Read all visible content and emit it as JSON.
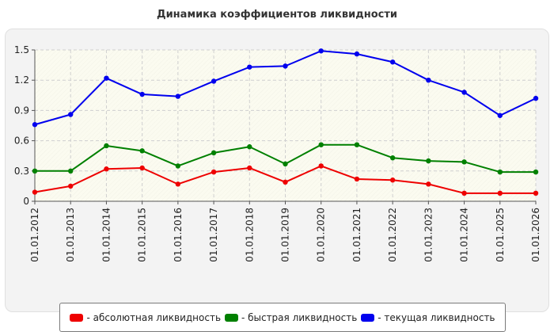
{
  "chart_data": {
    "type": "line",
    "title": "Динамика коэффициентов ликвидности",
    "xlabel": "",
    "ylabel": "",
    "ylim": [
      0,
      1.5
    ],
    "yticks": [
      "0",
      "0.3",
      "0.6",
      "0.9",
      "1.2",
      "1.5"
    ],
    "grid": true,
    "legend_position": "bottom",
    "categories": [
      "01.01.2012",
      "01.01.2013",
      "01.01.2014",
      "01.01.2015",
      "01.01.2016",
      "01.01.2017",
      "01.01.2018",
      "01.01.2019",
      "01.01.2020",
      "01.01.2021",
      "01.01.2022",
      "01.01.2023",
      "01.01.2024",
      "01.01.2025",
      "01.01.2026"
    ],
    "series": [
      {
        "name": "- абсолютная ликвидность",
        "color": "#ee0000",
        "values": [
          0.09,
          0.15,
          0.32,
          0.33,
          0.17,
          0.29,
          0.33,
          0.19,
          0.35,
          0.22,
          0.21,
          0.17,
          0.08,
          0.08,
          0.08
        ]
      },
      {
        "name": "- быстрая ликвидность",
        "color": "#008000",
        "values": [
          0.3,
          0.3,
          0.55,
          0.5,
          0.35,
          0.48,
          0.54,
          0.37,
          0.56,
          0.56,
          0.43,
          0.4,
          0.39,
          0.29,
          0.29
        ]
      },
      {
        "name": "- текущая ликвидность",
        "color": "#0000ee",
        "values": [
          0.76,
          0.86,
          1.22,
          1.06,
          1.04,
          1.19,
          1.33,
          1.34,
          1.49,
          1.46,
          1.38,
          1.2,
          1.08,
          0.85,
          1.02
        ]
      }
    ]
  }
}
